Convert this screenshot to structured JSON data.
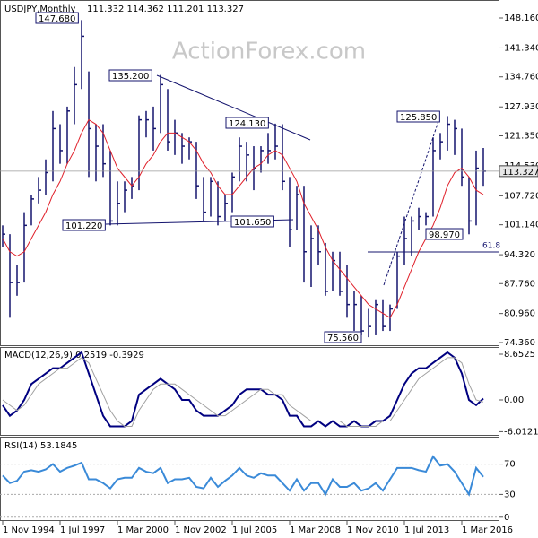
{
  "chart_data": [
    {
      "type": "ohlc",
      "title": "USDJPY,Monthly",
      "header": "111.332 114.362 111.201 113.327",
      "watermark": "ActionForex.com",
      "x": [
        "1994-11",
        "1995-03",
        "1995-07",
        "1995-11",
        "1996-03",
        "1996-07",
        "1996-11",
        "1997-03",
        "1997-07",
        "1997-11",
        "1998-03",
        "1998-07",
        "1998-11",
        "1999-03",
        "1999-07",
        "1999-11",
        "2000-03",
        "2000-07",
        "2000-11",
        "2001-03",
        "2001-07",
        "2001-11",
        "2002-03",
        "2002-07",
        "2002-11",
        "2003-03",
        "2003-07",
        "2003-11",
        "2004-03",
        "2004-07",
        "2004-11",
        "2005-03",
        "2005-07",
        "2005-11",
        "2006-03",
        "2006-07",
        "2006-11",
        "2007-03",
        "2007-07",
        "2007-11",
        "2008-03",
        "2008-07",
        "2008-11",
        "2009-03",
        "2009-07",
        "2009-11",
        "2010-03",
        "2010-07",
        "2010-11",
        "2011-03",
        "2011-07",
        "2011-11",
        "2012-03",
        "2012-07",
        "2012-11",
        "2013-03",
        "2013-07",
        "2013-11",
        "2014-03",
        "2014-07",
        "2014-11",
        "2015-03",
        "2015-07",
        "2015-11",
        "2016-03",
        "2016-07",
        "2016-11",
        "2017-03"
      ],
      "high": [
        101,
        99,
        92,
        104,
        108,
        112,
        116,
        127,
        124,
        128,
        137,
        147.68,
        136,
        124,
        124,
        118,
        111,
        111,
        112,
        126,
        127,
        128,
        135.2,
        132,
        125,
        122,
        121,
        120,
        112,
        112,
        111,
        108,
        113,
        121,
        120,
        119,
        119,
        122,
        124.13,
        124,
        112,
        110,
        110,
        101,
        101,
        97,
        95,
        95,
        92,
        86,
        85,
        82,
        84,
        84,
        83,
        95,
        103,
        103,
        105,
        104,
        121,
        122,
        125.85,
        125,
        123,
        112,
        118,
        118.6
      ],
      "low": [
        96,
        80,
        85,
        88,
        101,
        106,
        108,
        111,
        115,
        115,
        124,
        132,
        112,
        111,
        112,
        101,
        101,
        104,
        107,
        109,
        121,
        118,
        122,
        118,
        117,
        115,
        116,
        107,
        102,
        103,
        101,
        102,
        104,
        111,
        111,
        109,
        113,
        115,
        116,
        109,
        96,
        100,
        88,
        87,
        92,
        85,
        86,
        85,
        80,
        77,
        76,
        75.56,
        76,
        77,
        77,
        82,
        92,
        94,
        100,
        101,
        103,
        116,
        118,
        117,
        110,
        98.97,
        101,
        110
      ],
      "close": [
        99,
        88,
        88,
        101,
        107,
        109,
        113,
        123,
        118,
        127,
        133,
        144,
        123,
        119,
        115,
        102,
        106,
        109,
        110,
        125,
        125,
        123,
        133,
        120,
        122,
        119,
        120,
        110,
        104,
        111,
        103,
        106,
        112,
        119,
        117,
        114,
        118,
        118,
        119,
        111,
        100,
        108,
        95,
        98,
        95,
        86,
        93,
        86,
        83,
        83,
        77,
        78,
        83,
        78,
        82,
        94,
        98,
        102,
        103,
        103,
        118,
        120,
        124,
        123,
        112,
        102,
        114,
        113.327
      ],
      "ma": [
        98,
        95,
        94,
        95,
        98,
        101,
        104,
        108,
        111,
        115,
        118,
        122,
        125,
        124,
        122,
        118,
        114,
        112,
        110,
        112,
        115,
        117,
        120,
        122,
        122,
        121,
        120,
        118,
        115,
        113,
        110,
        108,
        108,
        110,
        112,
        114,
        115,
        117,
        118,
        117,
        114,
        111,
        106,
        103,
        100,
        96,
        93,
        91,
        89,
        87,
        85,
        83,
        82,
        81,
        80,
        83,
        87,
        91,
        95,
        98,
        101,
        105,
        110,
        113,
        114,
        112,
        109,
        108
      ],
      "bar_color": "#14146e",
      "ma_color": "#e0202a",
      "annotations": [
        "147.680",
        "135.200",
        "124.130",
        "101.220",
        "101.650",
        "75.560",
        "125.850",
        "98.970",
        "61.8"
      ],
      "ylim": [
        73.75,
        151.83
      ],
      "yticks": [
        {
          "value": 148.16,
          "label": "148.160"
        },
        {
          "value": 141.34,
          "label": "141.340"
        },
        {
          "value": 134.76,
          "label": "134.760"
        },
        {
          "value": 127.93,
          "label": "127.930"
        },
        {
          "value": 121.35,
          "label": "121.350"
        },
        {
          "value": 114.53,
          "label": "114.530"
        },
        {
          "value": 107.72,
          "label": "107.720"
        },
        {
          "value": 101.14,
          "label": "101.140"
        },
        {
          "value": 94.32,
          "label": "94.320"
        },
        {
          "value": 87.76,
          "label": "87.760"
        },
        {
          "value": 80.96,
          "label": "80.960"
        },
        {
          "value": 74.36,
          "label": "74.360"
        }
      ],
      "xticks": [
        {
          "value": "1994-11",
          "label": "1 Nov 1994"
        },
        {
          "value": "1997-07",
          "label": "1 Jul 1997"
        },
        {
          "value": "2000-03",
          "label": "1 Mar 2000"
        },
        {
          "value": "2002-11",
          "label": "1 Nov 2002"
        },
        {
          "value": "2005-07",
          "label": "1 Jul 2005"
        },
        {
          "value": "2008-03",
          "label": "1 Mar 2008"
        },
        {
          "value": "2010-11",
          "label": "1 Nov 2010"
        },
        {
          "value": "2013-07",
          "label": "1 Jul 2013"
        },
        {
          "value": "2016-03",
          "label": "1 Mar 2016"
        }
      ]
    },
    {
      "type": "line",
      "title": "MACD(12,26,9) 0.2519 -0.3929",
      "series": [
        {
          "color": "#000080",
          "values": [
            -1,
            -3,
            -2,
            0,
            3,
            4,
            5,
            6,
            6,
            7,
            8,
            9,
            5,
            1,
            -3,
            -5,
            -5,
            -5,
            -4,
            1,
            2,
            3,
            4,
            3,
            2,
            0,
            0,
            -2,
            -3,
            -3,
            -3,
            -2,
            -1,
            1,
            2,
            2,
            2,
            1,
            1,
            0,
            -3,
            -3,
            -5,
            -5,
            -4,
            -5,
            -4,
            -5,
            -5,
            -4,
            -5,
            -5,
            -4,
            -4,
            -3,
            0,
            3,
            5,
            6,
            6,
            7,
            8,
            9,
            8,
            5,
            0,
            -1,
            0.2519
          ]
        },
        {
          "color": "#a0a0a0",
          "values": [
            0,
            -1,
            -2,
            -1,
            1,
            3,
            4,
            5,
            6,
            6,
            7,
            8,
            7,
            4,
            1,
            -2,
            -4,
            -5,
            -5,
            -2,
            0,
            2,
            3,
            3,
            3,
            2,
            1,
            0,
            -1,
            -2,
            -3,
            -3,
            -2,
            -1,
            0,
            1,
            2,
            2,
            1,
            1,
            -1,
            -2,
            -3,
            -4,
            -4,
            -4,
            -4,
            -4,
            -5,
            -5,
            -5,
            -5,
            -5,
            -4,
            -4,
            -2,
            0,
            2,
            4,
            5,
            6,
            7,
            8,
            8,
            7,
            3,
            0,
            -0.3929
          ]
        }
      ],
      "ylim": [
        -6.62,
        9.84
      ],
      "yticks": [
        8.6525,
        {
          "value": 0,
          "label": "0.00"
        },
        -6.0121
      ],
      "grid": false
    },
    {
      "type": "line",
      "title": "RSI(14) 53.1845",
      "series": [
        {
          "color": "#3a8ad8",
          "values": [
            55,
            45,
            48,
            60,
            62,
            60,
            63,
            70,
            60,
            65,
            68,
            72,
            50,
            50,
            45,
            38,
            50,
            52,
            52,
            65,
            60,
            58,
            65,
            45,
            50,
            50,
            52,
            40,
            38,
            52,
            40,
            48,
            55,
            65,
            55,
            52,
            58,
            55,
            55,
            45,
            35,
            50,
            35,
            45,
            45,
            30,
            50,
            40,
            40,
            45,
            35,
            38,
            45,
            35,
            50,
            65,
            65,
            65,
            62,
            60,
            80,
            68,
            70,
            60,
            45,
            30,
            65,
            53.1845
          ]
        }
      ],
      "ylim": [
        -5,
        105
      ],
      "yticks": [
        70,
        30,
        0
      ],
      "grid": true
    }
  ]
}
